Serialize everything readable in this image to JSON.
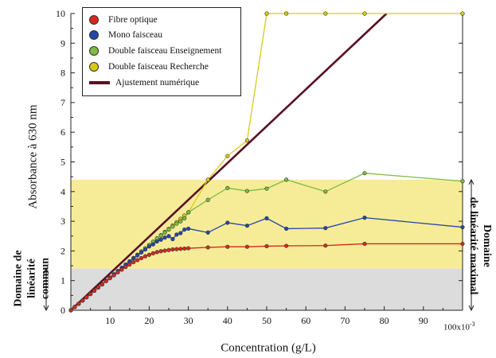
{
  "chart_data": {
    "type": "line",
    "xlabel": "Concentration (g/L)",
    "ylabel": "Absorbance à 630 nm",
    "x_unit_label": "100x10",
    "x_unit_exponent": "-3",
    "xlim": [
      0,
      100
    ],
    "ylim": [
      0,
      10
    ],
    "xticks": [
      10,
      20,
      30,
      40,
      50,
      60,
      70,
      80,
      90
    ],
    "yticks": [
      0,
      1,
      2,
      3,
      4,
      5,
      6,
      7,
      8,
      9,
      10
    ],
    "bands": [
      {
        "name": "Domaine de linéarité maximal",
        "y0": 1.4,
        "y1": 4.4,
        "color": "#f6ec98"
      },
      {
        "name": "Domaine de linéarité commun",
        "y0": 0,
        "y1": 1.4,
        "color": "#dcdcdc"
      }
    ],
    "annotations": {
      "left": [
        "Domaine de",
        "linéarité",
        "commun"
      ],
      "right": [
        "Domaine",
        "de linéarité maximal"
      ]
    },
    "legend_position": "top-left",
    "series": [
      {
        "name": "Fibre optique",
        "color": "#d42a1f",
        "marker": "circle",
        "x": [
          0,
          1,
          2,
          3,
          4,
          5,
          6,
          7,
          8,
          9,
          10,
          11,
          12,
          13,
          14,
          15,
          16,
          17,
          18,
          19,
          20,
          21,
          22,
          23,
          24,
          25,
          26,
          27,
          28,
          29,
          30,
          35,
          40,
          45,
          50,
          55,
          65,
          75,
          100
        ],
        "y": [
          0,
          0.11,
          0.22,
          0.33,
          0.44,
          0.55,
          0.66,
          0.77,
          0.87,
          0.98,
          1.08,
          1.18,
          1.28,
          1.37,
          1.46,
          1.54,
          1.62,
          1.69,
          1.76,
          1.82,
          1.87,
          1.92,
          1.96,
          1.99,
          2.01,
          2.03,
          2.05,
          2.06,
          2.07,
          2.08,
          2.09,
          2.12,
          2.14,
          2.14,
          2.16,
          2.17,
          2.18,
          2.24,
          2.24
        ]
      },
      {
        "name": "Mono faisceau",
        "color": "#2546a8",
        "marker": "circle",
        "x": [
          0,
          1,
          2,
          3,
          4,
          5,
          6,
          7,
          8,
          9,
          10,
          11,
          12,
          13,
          14,
          15,
          16,
          17,
          18,
          19,
          20,
          21,
          22,
          23,
          24,
          25,
          26,
          27,
          28,
          29,
          30,
          35,
          40,
          45,
          50,
          55,
          65,
          75,
          100
        ],
        "y": [
          0,
          0.11,
          0.22,
          0.33,
          0.44,
          0.55,
          0.66,
          0.77,
          0.88,
          0.99,
          1.1,
          1.21,
          1.32,
          1.43,
          1.54,
          1.65,
          1.75,
          1.85,
          1.95,
          2.05,
          2.15,
          2.22,
          2.32,
          2.38,
          2.45,
          2.5,
          2.4,
          2.55,
          2.6,
          2.72,
          2.75,
          2.62,
          2.95,
          2.85,
          3.1,
          2.75,
          2.77,
          3.12,
          2.8
        ]
      },
      {
        "name": "Double faisceau Enseignement",
        "color": "#7dbb42",
        "marker": "circle",
        "x": [
          0,
          1,
          2,
          3,
          4,
          5,
          6,
          7,
          8,
          9,
          10,
          11,
          12,
          13,
          14,
          15,
          16,
          17,
          18,
          19,
          20,
          21,
          22,
          23,
          24,
          25,
          26,
          27,
          28,
          29,
          30,
          35,
          40,
          45,
          50,
          55,
          65,
          75,
          100
        ],
        "y": [
          0,
          0.11,
          0.22,
          0.33,
          0.44,
          0.55,
          0.66,
          0.77,
          0.88,
          0.99,
          1.1,
          1.21,
          1.32,
          1.43,
          1.54,
          1.65,
          1.76,
          1.87,
          1.98,
          2.09,
          2.2,
          2.31,
          2.42,
          2.52,
          2.62,
          2.72,
          2.82,
          2.92,
          3.0,
          3.1,
          3.3,
          3.72,
          4.12,
          4.02,
          4.1,
          4.4,
          4.0,
          4.62,
          4.35
        ]
      },
      {
        "name": "Double faisceau Recherche",
        "color": "#d8c91c",
        "marker": "circle",
        "x": [
          0,
          1,
          2,
          3,
          4,
          5,
          6,
          7,
          8,
          9,
          10,
          11,
          12,
          13,
          14,
          15,
          16,
          17,
          18,
          19,
          20,
          21,
          22,
          23,
          24,
          25,
          26,
          27,
          28,
          29,
          30,
          35,
          40,
          45,
          50,
          55,
          65,
          75,
          100
        ],
        "y": [
          0,
          0.11,
          0.22,
          0.33,
          0.44,
          0.55,
          0.66,
          0.77,
          0.88,
          0.99,
          1.1,
          1.21,
          1.32,
          1.43,
          1.54,
          1.65,
          1.76,
          1.87,
          1.98,
          2.09,
          2.2,
          2.31,
          2.42,
          2.53,
          2.64,
          2.75,
          2.86,
          2.97,
          3.08,
          3.19,
          3.3,
          4.4,
          5.2,
          5.72,
          10,
          10,
          10,
          10,
          10
        ]
      },
      {
        "name": "Ajustement numérique",
        "color": "#5a0f22",
        "marker": "line",
        "x": [
          0,
          80.6
        ],
        "y": [
          0,
          10
        ]
      }
    ]
  }
}
